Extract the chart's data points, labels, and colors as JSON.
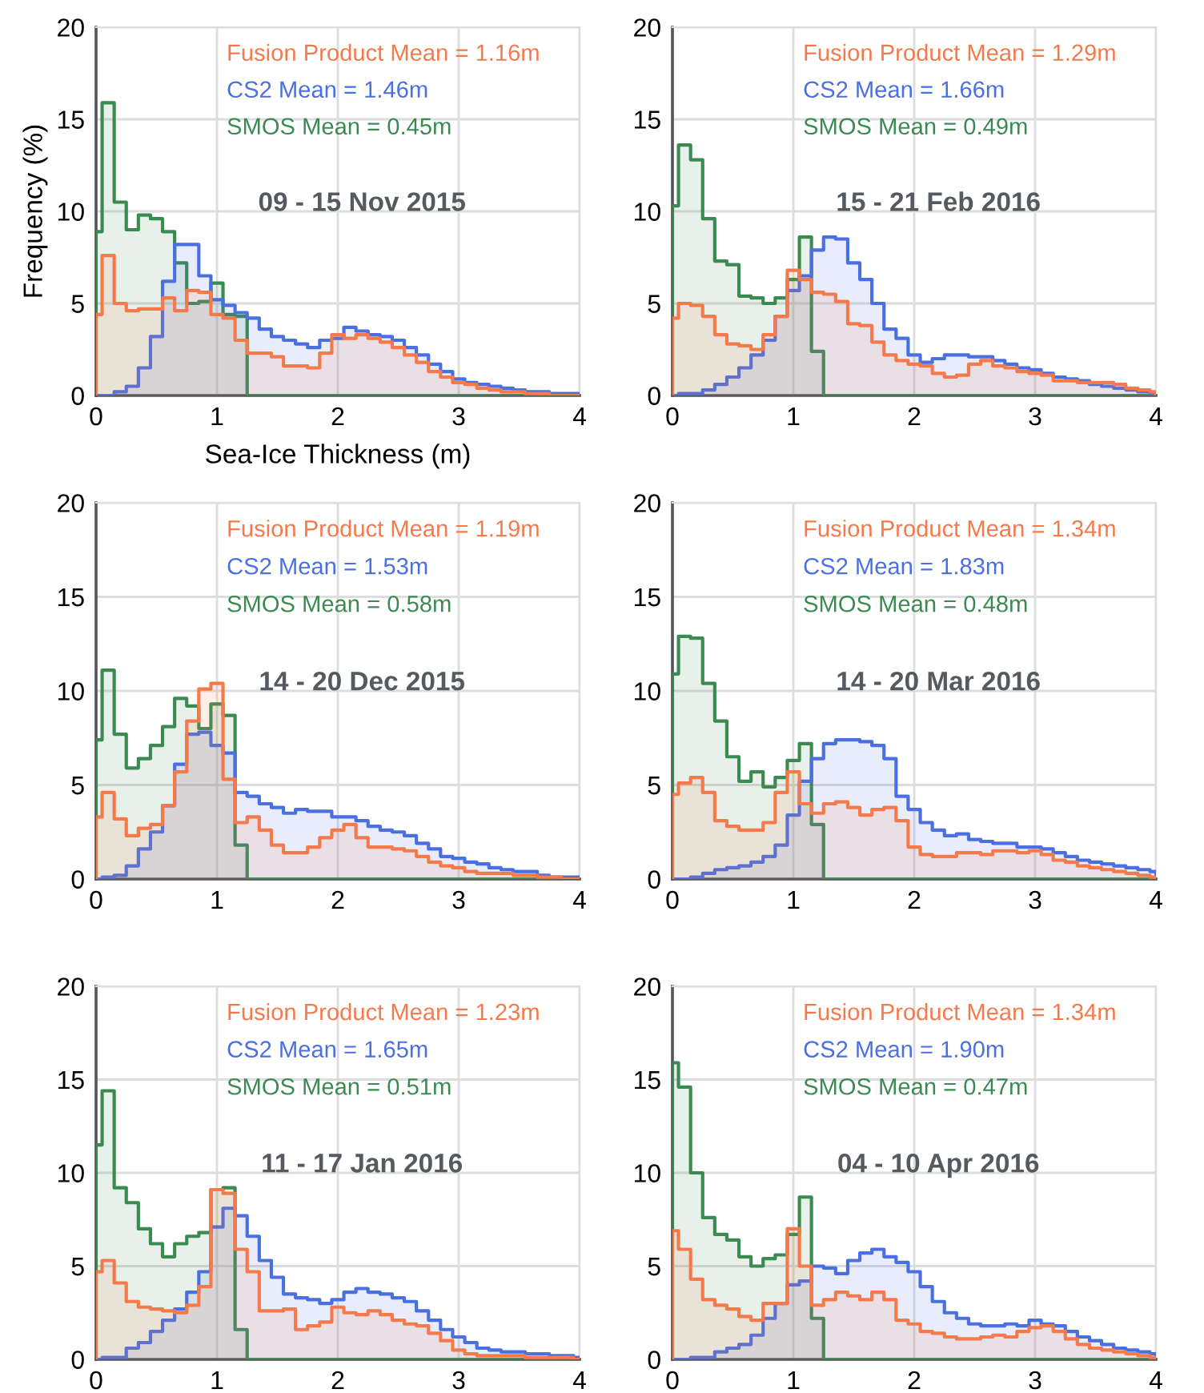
{
  "chart_data": [
    {
      "type": "histogram",
      "title": "09 - 15 Nov 2015",
      "xlabel": "Sea-Ice Thickness (m)",
      "ylabel": "Frequency (%)",
      "annotations": [
        "Fusion Product Mean = 1.16m",
        "CS2 Mean = 1.46m",
        "SMOS Mean = 0.45m"
      ],
      "bins": [
        0,
        0.05,
        0.15,
        0.25,
        0.35,
        0.45,
        0.55,
        0.65,
        0.75,
        0.85,
        0.95,
        1.05,
        1.15,
        1.25,
        1.35,
        1.45,
        1.55,
        1.65,
        1.75,
        1.85,
        1.95,
        2.05,
        2.15,
        2.25,
        2.35,
        2.45,
        2.55,
        2.65,
        2.75,
        2.85,
        2.95,
        3.05,
        3.15,
        3.25,
        3.35,
        3.45,
        3.55,
        3.65,
        3.75,
        3.85,
        3.95,
        4.0
      ],
      "series": [
        {
          "color": "#f47a4c",
          "values": [
            4.4,
            7.6,
            5.0,
            4.6,
            4.7,
            4.7,
            5.3,
            4.6,
            5.7,
            5.6,
            4.4,
            4.2,
            3.0,
            2.3,
            2.3,
            2.1,
            1.6,
            1.6,
            1.5,
            2.3,
            3.3,
            3.1,
            3.3,
            3.1,
            2.9,
            2.6,
            2.2,
            1.8,
            1.3,
            1.0,
            0.7,
            0.6,
            0.4,
            0.3,
            0.2,
            0.2,
            0.1,
            0.1,
            0,
            0,
            0
          ]
        },
        {
          "color": "#4a6fe0",
          "values": [
            0,
            0,
            0.2,
            0.5,
            1.5,
            3.2,
            6.2,
            8.2,
            8.2,
            6.5,
            5.2,
            4.9,
            4.5,
            4.2,
            3.6,
            3.2,
            3.0,
            2.8,
            2.6,
            3.0,
            3.1,
            3.7,
            3.5,
            3.3,
            3.2,
            3.0,
            2.6,
            2.2,
            1.7,
            1.3,
            0.9,
            0.7,
            0.6,
            0.5,
            0.4,
            0.3,
            0.2,
            0.2,
            0.1,
            0.1,
            0.1
          ]
        },
        {
          "color": "#3a8a52",
          "values": [
            8.9,
            15.9,
            10.5,
            9.0,
            9.8,
            9.6,
            8.9,
            7.2,
            5.0,
            5.1,
            6.1,
            4.4,
            4.3,
            0,
            0,
            0,
            0,
            0,
            0,
            0,
            0,
            0,
            0,
            0,
            0,
            0,
            0,
            0,
            0,
            0,
            0,
            0,
            0,
            0,
            0,
            0,
            0,
            0,
            0,
            0,
            0
          ]
        }
      ],
      "xlim": [
        0,
        4
      ],
      "ylim": [
        0,
        20
      ],
      "xticks": [
        0,
        1,
        2,
        3,
        4
      ],
      "yticks": [
        0,
        5,
        10,
        15,
        20
      ],
      "grid": true
    },
    {
      "type": "histogram",
      "title": "15 - 21 Feb 2016",
      "annotations": [
        "Fusion Product Mean = 1.29m",
        "CS2 Mean = 1.66m",
        "SMOS Mean = 0.49m"
      ],
      "bins": [
        0,
        0.05,
        0.15,
        0.25,
        0.35,
        0.45,
        0.55,
        0.65,
        0.75,
        0.85,
        0.95,
        1.05,
        1.15,
        1.25,
        1.35,
        1.45,
        1.55,
        1.65,
        1.75,
        1.85,
        1.95,
        2.05,
        2.15,
        2.25,
        2.35,
        2.45,
        2.55,
        2.65,
        2.75,
        2.85,
        2.95,
        3.05,
        3.15,
        3.25,
        3.35,
        3.45,
        3.55,
        3.65,
        3.75,
        3.85,
        3.95,
        4.0
      ],
      "series": [
        {
          "color": "#f47a4c",
          "values": [
            4.2,
            5.0,
            4.9,
            4.3,
            3.3,
            2.8,
            2.7,
            2.5,
            3.3,
            4.3,
            6.8,
            6.3,
            5.6,
            5.5,
            5.1,
            3.9,
            3.8,
            2.9,
            2.2,
            1.9,
            1.7,
            1.6,
            1.2,
            1.0,
            1.1,
            1.7,
            1.9,
            1.6,
            1.5,
            1.3,
            1.2,
            1.1,
            0.8,
            0.8,
            0.7,
            0.7,
            0.7,
            0.6,
            0.4,
            0.3,
            0.2
          ]
        },
        {
          "color": "#4a6fe0",
          "values": [
            0,
            0.1,
            0.1,
            0.3,
            0.6,
            1.0,
            1.5,
            2.2,
            3.0,
            4.3,
            5.7,
            6.5,
            7.9,
            8.6,
            8.5,
            7.2,
            6.3,
            5.0,
            3.6,
            3.1,
            2.2,
            1.8,
            2.0,
            2.2,
            2.2,
            2.1,
            2.1,
            1.9,
            1.7,
            1.5,
            1.4,
            1.2,
            1.0,
            0.9,
            0.8,
            0.6,
            0.5,
            0.4,
            0.3,
            0.2,
            0.1
          ]
        },
        {
          "color": "#3a8a52",
          "values": [
            10.3,
            13.6,
            12.8,
            9.6,
            7.3,
            7.1,
            5.4,
            5.3,
            5.0,
            5.3,
            6.3,
            8.6,
            2.4,
            0,
            0,
            0,
            0,
            0,
            0,
            0,
            0,
            0,
            0,
            0,
            0,
            0,
            0,
            0,
            0,
            0,
            0,
            0,
            0,
            0,
            0,
            0,
            0,
            0,
            0,
            0,
            0
          ]
        }
      ],
      "xlim": [
        0,
        4
      ],
      "ylim": [
        0,
        20
      ],
      "xticks": [
        0,
        1,
        2,
        3,
        4
      ],
      "yticks": [
        0,
        5,
        10,
        15,
        20
      ],
      "grid": true
    },
    {
      "type": "histogram",
      "title": "14 - 20 Dec 2015",
      "annotations": [
        "Fusion Product Mean = 1.19m",
        "CS2 Mean = 1.53m",
        "SMOS Mean = 0.58m"
      ],
      "bins": [
        0,
        0.05,
        0.15,
        0.25,
        0.35,
        0.45,
        0.55,
        0.65,
        0.75,
        0.85,
        0.95,
        1.05,
        1.15,
        1.25,
        1.35,
        1.45,
        1.55,
        1.65,
        1.75,
        1.85,
        1.95,
        2.05,
        2.15,
        2.25,
        2.35,
        2.45,
        2.55,
        2.65,
        2.75,
        2.85,
        2.95,
        3.05,
        3.15,
        3.25,
        3.35,
        3.45,
        3.55,
        3.65,
        3.75,
        3.85,
        3.95,
        4.0
      ],
      "series": [
        {
          "color": "#f47a4c",
          "values": [
            3.3,
            4.6,
            3.2,
            2.3,
            2.7,
            2.9,
            3.9,
            5.7,
            8.4,
            10.1,
            10.4,
            5.3,
            3.0,
            3.3,
            2.6,
            1.8,
            1.4,
            1.4,
            1.7,
            2.2,
            2.6,
            2.9,
            2.2,
            1.7,
            1.7,
            1.6,
            1.5,
            1.2,
            0.9,
            0.7,
            0.6,
            0.4,
            0.3,
            0.3,
            0.3,
            0.2,
            0.2,
            0.1,
            0.1,
            0,
            0
          ]
        },
        {
          "color": "#4a6fe0",
          "values": [
            0,
            0.1,
            0.2,
            0.7,
            1.6,
            2.5,
            3.9,
            6.1,
            7.7,
            7.8,
            7.1,
            6.7,
            4.6,
            4.4,
            4.0,
            3.8,
            3.5,
            3.7,
            3.6,
            3.6,
            3.3,
            3.3,
            3.1,
            2.8,
            2.6,
            2.5,
            2.3,
            1.9,
            1.6,
            1.2,
            1.1,
            0.9,
            0.8,
            0.6,
            0.5,
            0.4,
            0.4,
            0.2,
            0.1,
            0.1,
            0.1
          ]
        },
        {
          "color": "#3a8a52",
          "values": [
            7.4,
            11.1,
            7.7,
            5.9,
            6.4,
            7.1,
            8.1,
            9.6,
            9.2,
            8.0,
            9.3,
            8.7,
            1.8,
            0,
            0,
            0,
            0,
            0,
            0,
            0,
            0,
            0,
            0,
            0,
            0,
            0,
            0,
            0,
            0,
            0,
            0,
            0,
            0,
            0,
            0,
            0,
            0,
            0,
            0,
            0,
            0
          ]
        }
      ],
      "xlim": [
        0,
        4
      ],
      "ylim": [
        0,
        20
      ],
      "xticks": [
        0,
        1,
        2,
        3,
        4
      ],
      "yticks": [
        0,
        5,
        10,
        15,
        20
      ],
      "grid": true
    },
    {
      "type": "histogram",
      "title": "14 - 20 Mar 2016",
      "annotations": [
        "Fusion Product Mean = 1.34m",
        "CS2 Mean = 1.83m",
        "SMOS Mean = 0.48m"
      ],
      "bins": [
        0,
        0.05,
        0.15,
        0.25,
        0.35,
        0.45,
        0.55,
        0.65,
        0.75,
        0.85,
        0.95,
        1.05,
        1.15,
        1.25,
        1.35,
        1.45,
        1.55,
        1.65,
        1.75,
        1.85,
        1.95,
        2.05,
        2.15,
        2.25,
        2.35,
        2.45,
        2.55,
        2.65,
        2.75,
        2.85,
        2.95,
        3.05,
        3.15,
        3.25,
        3.35,
        3.45,
        3.55,
        3.65,
        3.75,
        3.85,
        3.95,
        4.0
      ],
      "series": [
        {
          "color": "#f47a4c",
          "values": [
            4.5,
            5.1,
            5.4,
            4.6,
            3.1,
            2.8,
            2.6,
            2.6,
            3.0,
            4.6,
            5.7,
            4.0,
            3.5,
            4.0,
            4.1,
            3.8,
            3.4,
            3.7,
            3.8,
            3.1,
            1.7,
            1.3,
            1.2,
            1.2,
            1.4,
            1.4,
            1.3,
            1.5,
            1.5,
            1.4,
            1.5,
            1.3,
            1.0,
            0.9,
            0.7,
            0.6,
            0.5,
            0.4,
            0.3,
            0.2,
            0.1
          ]
        },
        {
          "color": "#4a6fe0",
          "values": [
            0,
            0,
            0.1,
            0.3,
            0.5,
            0.6,
            0.7,
            0.9,
            1.2,
            1.8,
            3.4,
            5.2,
            6.4,
            7.2,
            7.4,
            7.4,
            7.3,
            7.1,
            6.4,
            4.4,
            3.7,
            3.0,
            2.6,
            2.3,
            2.4,
            2.1,
            2.0,
            1.9,
            1.9,
            1.7,
            1.7,
            1.6,
            1.4,
            1.2,
            1.0,
            0.9,
            0.8,
            0.7,
            0.6,
            0.5,
            0.4
          ]
        },
        {
          "color": "#3a8a52",
          "values": [
            10.9,
            12.9,
            12.8,
            10.4,
            8.4,
            6.5,
            5.2,
            5.7,
            4.9,
            5.4,
            6.3,
            7.2,
            2.9,
            0,
            0,
            0,
            0,
            0,
            0,
            0,
            0,
            0,
            0,
            0,
            0,
            0,
            0,
            0,
            0,
            0,
            0,
            0,
            0,
            0,
            0,
            0,
            0,
            0,
            0,
            0,
            0
          ]
        }
      ],
      "xlim": [
        0,
        4
      ],
      "ylim": [
        0,
        20
      ],
      "xticks": [
        0,
        1,
        2,
        3,
        4
      ],
      "yticks": [
        0,
        5,
        10,
        15,
        20
      ],
      "grid": true
    },
    {
      "type": "histogram",
      "title": "11 - 17 Jan 2016",
      "annotations": [
        "Fusion Product Mean = 1.23m",
        "CS2 Mean = 1.65m",
        "SMOS Mean = 0.51m"
      ],
      "bins": [
        0,
        0.05,
        0.15,
        0.25,
        0.35,
        0.45,
        0.55,
        0.65,
        0.75,
        0.85,
        0.95,
        1.05,
        1.15,
        1.25,
        1.35,
        1.45,
        1.55,
        1.65,
        1.75,
        1.85,
        1.95,
        2.05,
        2.15,
        2.25,
        2.35,
        2.45,
        2.55,
        2.65,
        2.75,
        2.85,
        2.95,
        3.05,
        3.15,
        3.25,
        3.35,
        3.45,
        3.55,
        3.65,
        3.75,
        3.85,
        3.95,
        4.0
      ],
      "series": [
        {
          "color": "#f47a4c",
          "values": [
            4.7,
            5.3,
            4.1,
            3.1,
            2.8,
            2.7,
            2.6,
            2.5,
            2.9,
            3.9,
            9.1,
            8.9,
            5.9,
            4.7,
            2.6,
            2.6,
            2.7,
            1.6,
            1.8,
            2.0,
            2.8,
            2.5,
            2.4,
            2.6,
            2.4,
            2.1,
            1.9,
            1.8,
            1.4,
            1.0,
            0.5,
            0.3,
            0.2,
            0.2,
            0.2,
            0.2,
            0.1,
            0.1,
            0.1,
            0.1,
            0
          ]
        },
        {
          "color": "#4a6fe0",
          "values": [
            0,
            0.1,
            0.1,
            0.6,
            0.9,
            1.5,
            2.1,
            2.7,
            3.6,
            4.7,
            7.1,
            8.1,
            7.7,
            6.6,
            5.3,
            4.4,
            3.5,
            3.3,
            3.2,
            3.0,
            3.2,
            3.6,
            3.8,
            3.6,
            3.5,
            3.3,
            3.1,
            2.6,
            2.1,
            1.6,
            1.2,
            0.9,
            0.6,
            0.5,
            0.4,
            0.4,
            0.3,
            0.3,
            0.2,
            0.2,
            0.1
          ]
        },
        {
          "color": "#3a8a52",
          "values": [
            11.5,
            14.4,
            9.2,
            8.4,
            7.0,
            6.2,
            5.5,
            6.2,
            6.6,
            6.8,
            9.1,
            9.2,
            1.6,
            0,
            0,
            0,
            0,
            0,
            0,
            0,
            0,
            0,
            0,
            0,
            0,
            0,
            0,
            0,
            0,
            0,
            0,
            0,
            0,
            0,
            0,
            0,
            0,
            0,
            0,
            0,
            0
          ]
        }
      ],
      "xlim": [
        0,
        4
      ],
      "ylim": [
        0,
        20
      ],
      "xticks": [
        0,
        1,
        2,
        3,
        4
      ],
      "yticks": [
        0,
        5,
        10,
        15,
        20
      ],
      "grid": true
    },
    {
      "type": "histogram",
      "title": "04 - 10 Apr 2016",
      "annotations": [
        "Fusion Product Mean = 1.34m",
        "CS2 Mean = 1.90m",
        "SMOS Mean = 0.47m"
      ],
      "bins": [
        0,
        0.05,
        0.15,
        0.25,
        0.35,
        0.45,
        0.55,
        0.65,
        0.75,
        0.85,
        0.95,
        1.05,
        1.15,
        1.25,
        1.35,
        1.45,
        1.55,
        1.65,
        1.75,
        1.85,
        1.95,
        2.05,
        2.15,
        2.25,
        2.35,
        2.45,
        2.55,
        2.65,
        2.75,
        2.85,
        2.95,
        3.05,
        3.15,
        3.25,
        3.35,
        3.45,
        3.55,
        3.65,
        3.75,
        3.85,
        3.95,
        4.0
      ],
      "series": [
        {
          "color": "#f47a4c",
          "values": [
            6.9,
            5.9,
            4.3,
            3.2,
            2.9,
            2.7,
            2.3,
            2.1,
            3.0,
            3.0,
            7.0,
            5.0,
            2.9,
            3.2,
            3.6,
            3.4,
            3.2,
            3.6,
            3.2,
            2.1,
            1.9,
            1.5,
            1.4,
            1.2,
            1.1,
            1.1,
            1.2,
            1.3,
            1.2,
            1.5,
            1.7,
            1.8,
            1.5,
            1.1,
            0.8,
            0.6,
            0.5,
            0.4,
            0.3,
            0.2,
            0.1
          ]
        },
        {
          "color": "#4a6fe0",
          "values": [
            0,
            0,
            0.1,
            0.1,
            0.4,
            0.6,
            0.8,
            1.3,
            2.2,
            3.0,
            4.0,
            4.2,
            5.0,
            4.9,
            4.6,
            5.3,
            5.7,
            5.9,
            5.5,
            5.2,
            4.7,
            3.9,
            3.1,
            2.5,
            2.2,
            1.9,
            1.8,
            1.8,
            1.9,
            1.8,
            2.1,
            1.9,
            1.8,
            1.5,
            1.2,
            1.0,
            0.8,
            0.6,
            0.5,
            0.4,
            0.3
          ]
        },
        {
          "color": "#3a8a52",
          "values": [
            15.9,
            14.6,
            10.0,
            7.6,
            6.7,
            6.4,
            5.5,
            5.0,
            5.4,
            5.6,
            6.7,
            8.7,
            2.2,
            0,
            0,
            0,
            0,
            0,
            0,
            0,
            0,
            0,
            0,
            0,
            0,
            0,
            0,
            0,
            0,
            0,
            0,
            0,
            0,
            0,
            0,
            0,
            0,
            0,
            0,
            0,
            0
          ]
        }
      ],
      "xlim": [
        0,
        4
      ],
      "ylim": [
        0,
        20
      ],
      "xticks": [
        0,
        1,
        2,
        3,
        4
      ],
      "yticks": [
        0,
        5,
        10,
        15,
        20
      ],
      "grid": true
    }
  ]
}
